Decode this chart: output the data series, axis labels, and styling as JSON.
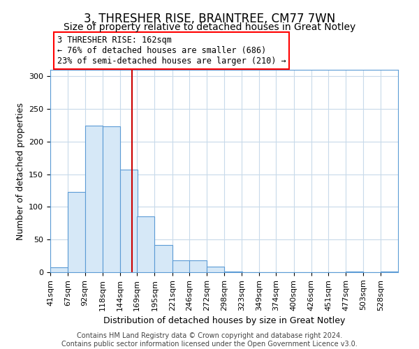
{
  "title": "3, THRESHER RISE, BRAINTREE, CM77 7WN",
  "subtitle": "Size of property relative to detached houses in Great Notley",
  "xlabel": "Distribution of detached houses by size in Great Notley",
  "ylabel": "Number of detached properties",
  "bin_edges": [
    41,
    67,
    92,
    118,
    144,
    169,
    195,
    221,
    246,
    272,
    298,
    323,
    349,
    374,
    400,
    426,
    451,
    477,
    503,
    528,
    554
  ],
  "bar_heights": [
    7,
    123,
    225,
    223,
    157,
    85,
    42,
    18,
    18,
    9,
    1,
    0,
    0,
    0,
    0,
    0,
    0,
    1,
    0,
    1
  ],
  "bar_face_color": "#d6e8f7",
  "bar_edge_color": "#5b9bd5",
  "vline_x": 162,
  "vline_color": "#cc0000",
  "annotation_line1": "3 THRESHER RISE: 162sqm",
  "annotation_line2": "← 76% of detached houses are smaller (686)",
  "annotation_line3": "23% of semi-detached houses are larger (210) →",
  "ylim": [
    0,
    310
  ],
  "yticks": [
    0,
    50,
    100,
    150,
    200,
    250,
    300
  ],
  "grid_color": "#c8daea",
  "bg_color": "#ffffff",
  "footer_text": "Contains HM Land Registry data © Crown copyright and database right 2024.\nContains public sector information licensed under the Open Government Licence v3.0.",
  "title_fontsize": 12,
  "subtitle_fontsize": 10,
  "xlabel_fontsize": 9,
  "ylabel_fontsize": 9,
  "tick_fontsize": 8,
  "footer_fontsize": 7
}
